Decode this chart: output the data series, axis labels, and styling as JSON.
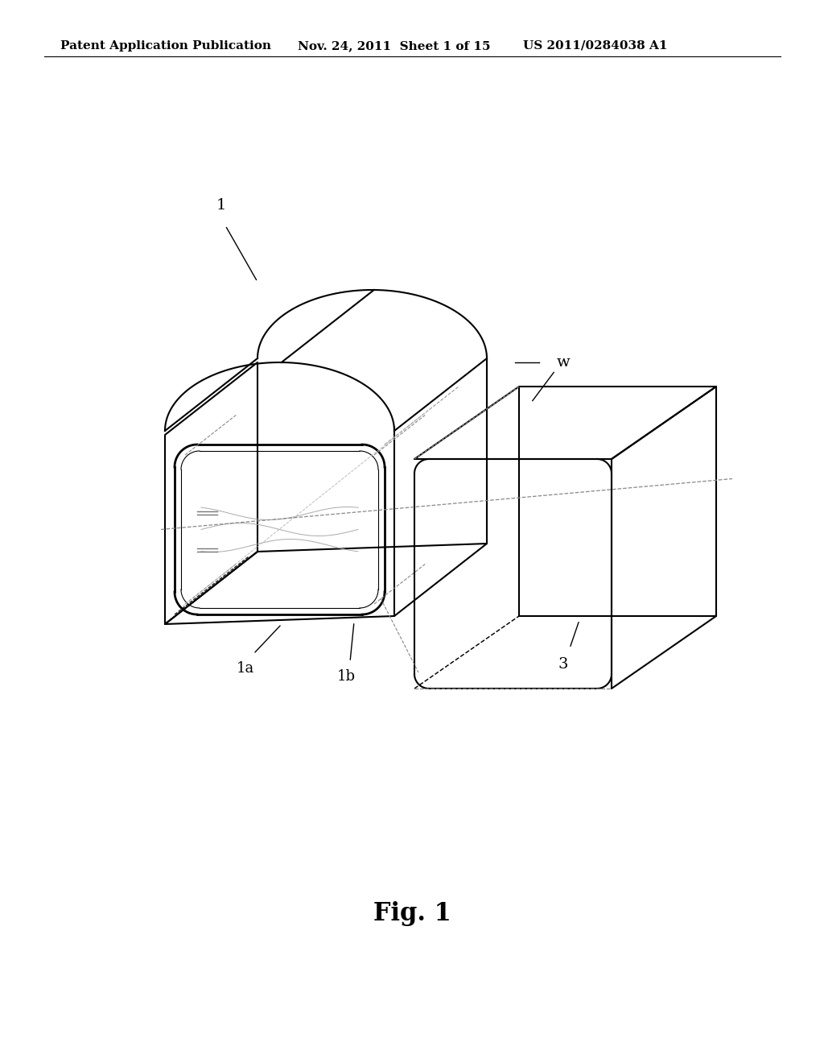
{
  "title": "",
  "header_left": "Patent Application Publication",
  "header_mid": "Nov. 24, 2011  Sheet 1 of 15",
  "header_right": "US 2011/0284038 A1",
  "figure_label": "Fig. 1",
  "bg_color": "#ffffff",
  "line_color": "#000000",
  "label_1": "1",
  "label_1a": "1a",
  "label_1b": "1b",
  "label_3": "3",
  "label_w": "w"
}
